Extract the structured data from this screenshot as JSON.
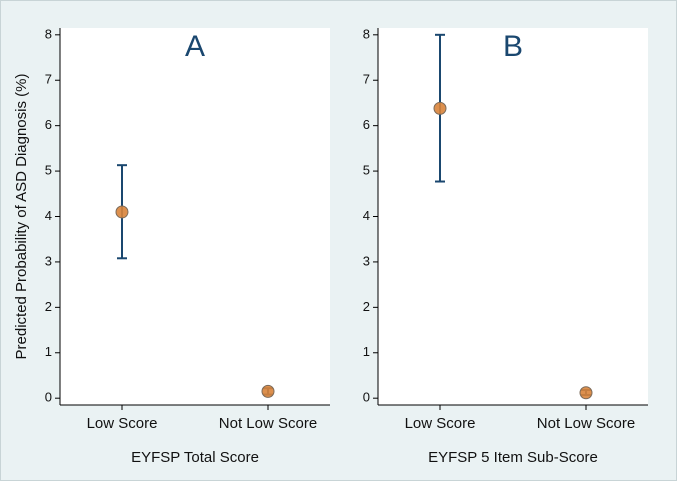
{
  "chart_data": [
    {
      "type": "errorbar",
      "title": "A",
      "y_label": "Predicted Probability of ASD Diagnosis (%)",
      "x_label": "EYFSP Total Score",
      "categories": [
        "Low Score",
        "Not Low Score"
      ],
      "values": [
        4.1,
        0.15
      ],
      "lower": [
        3.08,
        0.08
      ],
      "upper": [
        5.13,
        0.22
      ],
      "color": "#d9843b",
      "bar_color": "#1a476f",
      "ylim": [
        -0.15,
        8.15
      ],
      "yticks": [
        0,
        1,
        2,
        3,
        4,
        5,
        6,
        7,
        8
      ]
    },
    {
      "type": "errorbar",
      "title": "B",
      "x_label": "EYFSP 5 Item Sub-Score",
      "categories": [
        "Low Score",
        "Not Low Score"
      ],
      "values": [
        6.38,
        0.12
      ],
      "lower": [
        4.77,
        0.07
      ],
      "upper": [
        8.0,
        0.18
      ],
      "color": "#d9843b",
      "bar_color": "#1a476f",
      "ylim": [
        -0.15,
        8.15
      ],
      "yticks": [
        0,
        1,
        2,
        3,
        4,
        5,
        6,
        7,
        8
      ]
    }
  ]
}
